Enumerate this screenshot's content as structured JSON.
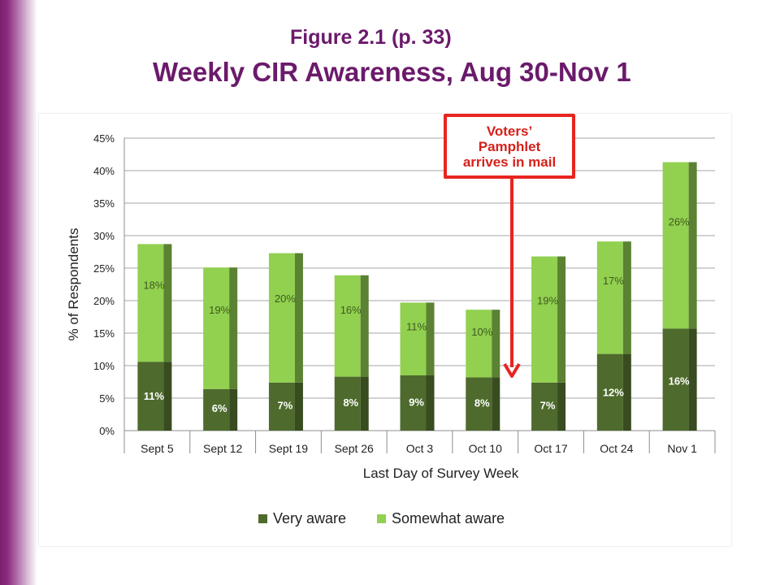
{
  "figure_label": "Figure 2.1 (p. 33)",
  "figure_title": "Weekly CIR Awareness, Aug 30-Nov 1",
  "annotation": "Voters’\nPamphlet\narrives in mail",
  "colors": {
    "very_aware": "#4e6a2c",
    "somewhat_aware": "#92d050",
    "annotation": "#e8251f",
    "title": "#6b1a6b"
  },
  "chart_data": {
    "type": "bar",
    "stacked": true,
    "categories": [
      "Sept 5",
      "Sept 12",
      "Sept 19",
      "Sept 26",
      "Oct 3",
      "Oct 10",
      "Oct 17",
      "Oct 24",
      "Nov 1"
    ],
    "series": [
      {
        "name": "Very aware",
        "values": [
          10.6,
          6.4,
          7.4,
          8.3,
          8.5,
          8.2,
          7.4,
          11.8,
          15.7
        ],
        "labels": [
          "11%",
          "6%",
          "7%",
          "8%",
          "9%",
          "8%",
          "7%",
          "12%",
          "16%"
        ]
      },
      {
        "name": "Somewhat aware",
        "values": [
          18.1,
          18.7,
          19.9,
          15.6,
          11.2,
          10.4,
          19.4,
          17.3,
          25.6
        ],
        "labels": [
          "18%",
          "19%",
          "20%",
          "16%",
          "11%",
          "10%",
          "19%",
          "17%",
          "26%"
        ]
      }
    ],
    "ylim": [
      0,
      45
    ],
    "yticks": [
      "0%",
      "5%",
      "10%",
      "15%",
      "20%",
      "25%",
      "30%",
      "35%",
      "40%",
      "45%"
    ],
    "xlabel": "Last Day of Survey Week",
    "ylabel": "% of Respondents",
    "legend": "bottom",
    "grid": true
  }
}
